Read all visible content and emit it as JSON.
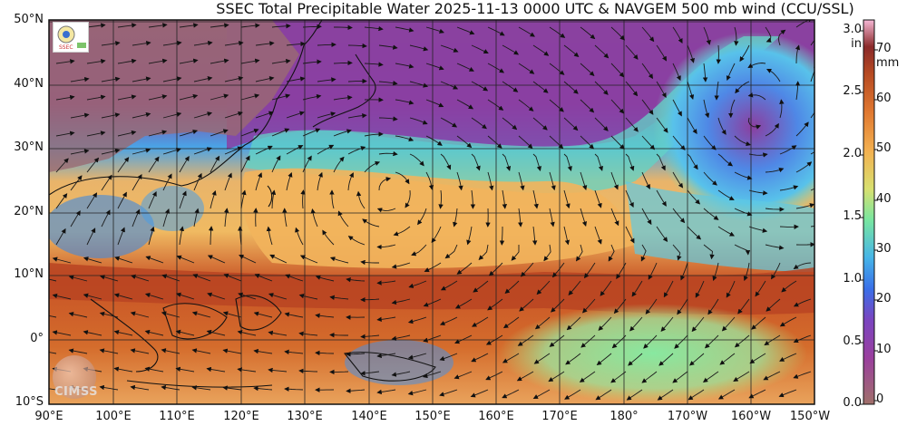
{
  "title": "SSEC Total Precipitable Water  2025-11-13 0000 UTC & NAVGEM 500 mb wind (CCU/SSL)",
  "map": {
    "lat_labels": [
      "50°N",
      "40°N",
      "30°N",
      "20°N",
      "10°N",
      "0°",
      "10°S"
    ],
    "lon_labels": [
      "90°E",
      "100°E",
      "110°E",
      "120°E",
      "130°E",
      "140°E",
      "150°E",
      "160°E",
      "170°E",
      "180°",
      "170°W",
      "160°W",
      "150°W"
    ],
    "logo_icon": "ssec-seal-icon",
    "watermark": "CIMSS"
  },
  "colorbar": {
    "inch_unit": "in",
    "mm_unit": "mm",
    "inch_labels": [
      "3.0",
      "2.5",
      "2.0",
      "1.5",
      "1.0",
      "0.5",
      "0.0"
    ],
    "mm_labels": [
      "70",
      "60",
      "50",
      "40",
      "30",
      "20",
      "10",
      "0"
    ],
    "colors": [
      "#a0706a",
      "#9a3f9e",
      "#8a3fa8",
      "#3a6fe8",
      "#46b4e8",
      "#79e6a0",
      "#d8e070",
      "#f3b050",
      "#e07830",
      "#b64a22",
      "#f6b8d6"
    ]
  },
  "colors": {
    "land_high_lat": "#8c3f8f",
    "moist_tropics": "#c24e22",
    "subtropical": "#f3b761",
    "dry": "#3e7fe0"
  }
}
